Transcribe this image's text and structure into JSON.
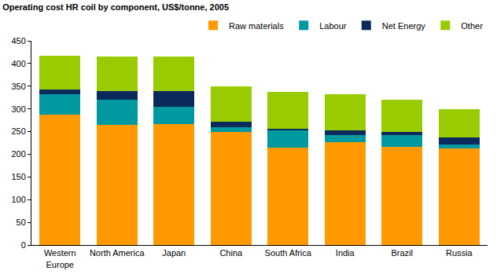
{
  "chart_data": {
    "type": "bar",
    "stacked": true,
    "title": "Operating cost HR coil by component, US$/tonne, 2005",
    "categories": [
      "Western Europe",
      "North America",
      "Japan",
      "China",
      "South Africa",
      "India",
      "Brazil",
      "Russia"
    ],
    "series": [
      {
        "name": "Raw materials",
        "color": "#ff9900",
        "values": [
          288,
          265,
          267,
          250,
          215,
          227,
          217,
          213
        ]
      },
      {
        "name": "Labour",
        "color": "#0099a0",
        "values": [
          45,
          55,
          38,
          10,
          38,
          15,
          26,
          8
        ]
      },
      {
        "name": "Net Energy",
        "color": "#0a2a5c",
        "values": [
          9,
          20,
          35,
          12,
          3,
          10,
          7,
          16
        ]
      },
      {
        "name": "Other",
        "color": "#99cc00",
        "values": [
          75,
          76,
          75,
          78,
          81,
          81,
          70,
          63
        ]
      }
    ],
    "ylim": [
      0,
      450
    ],
    "yticks": [
      0,
      50,
      100,
      150,
      200,
      250,
      300,
      350,
      400,
      450
    ],
    "grid": false,
    "legend": "top-right"
  }
}
